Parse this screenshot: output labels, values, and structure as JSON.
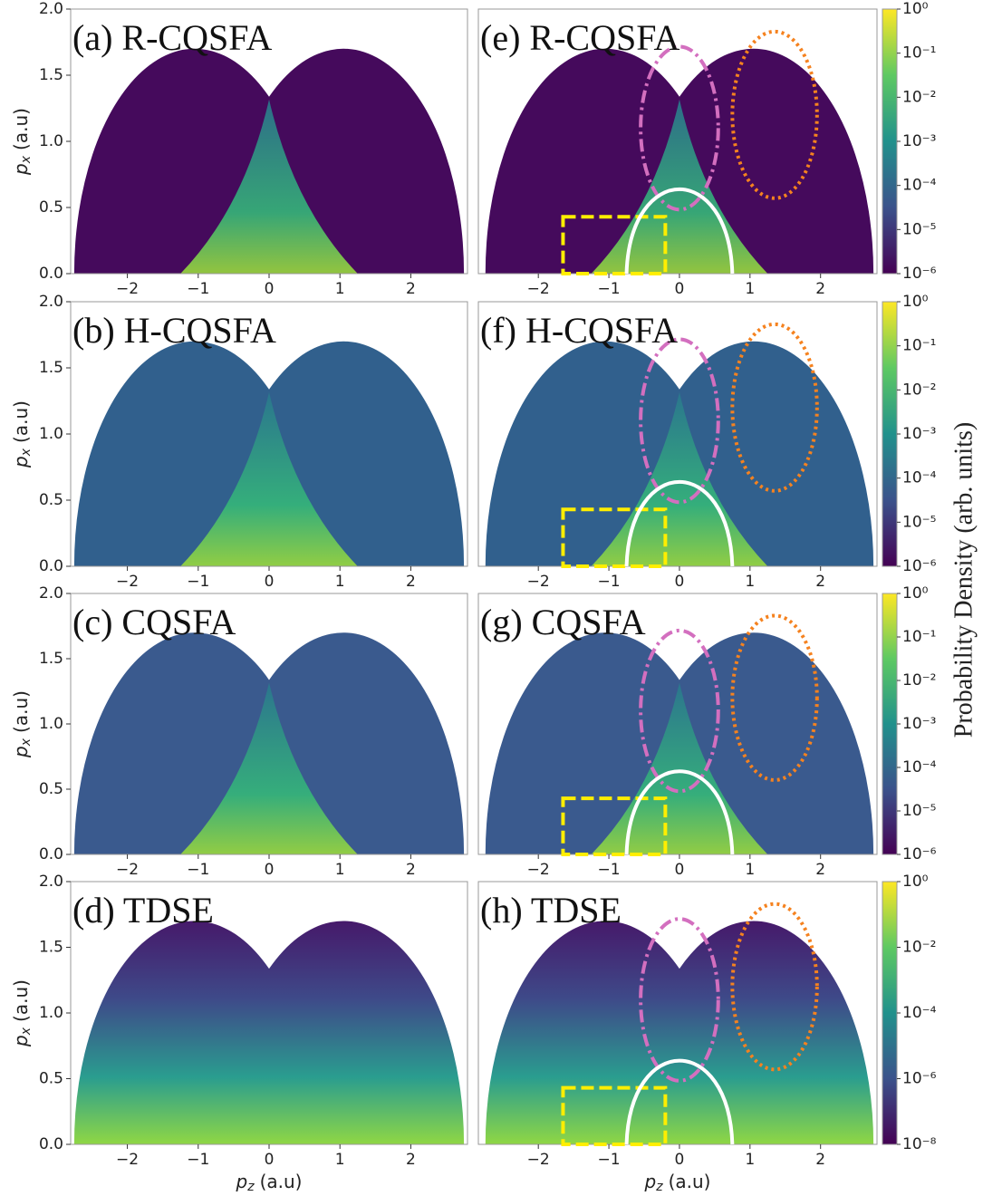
{
  "chart_data": [
    {
      "type": "heatmap",
      "title": "(a) R-CQSFA",
      "xlim": [
        -2.8,
        2.8
      ],
      "ylim": [
        0,
        2
      ],
      "xticks": [
        {
          "value": -2,
          "label": "−2"
        },
        {
          "value": -1,
          "label": "−1"
        },
        0,
        1,
        2
      ],
      "yticks": [
        {
          "value": 0,
          "label": "0.0"
        },
        {
          "value": 0.5,
          "label": "0.5"
        },
        {
          "value": 1,
          "label": "1.0"
        },
        {
          "value": 1.5,
          "label": "1.5"
        },
        {
          "value": 2,
          "label": "2.0"
        }
      ],
      "ylabel": {
        "symbol": "p",
        "sub": "x",
        "unit": "(a.u)"
      }
    },
    {
      "type": "heatmap",
      "title": "(b) H-CQSFA",
      "xlim": [
        -2.8,
        2.8
      ],
      "ylim": [
        0,
        2
      ],
      "xticks": [
        {
          "value": -2,
          "label": "−2"
        },
        {
          "value": -1,
          "label": "−1"
        },
        0,
        1,
        2
      ],
      "yticks": [
        {
          "value": 0,
          "label": "0.0"
        },
        {
          "value": 0.5,
          "label": "0.5"
        },
        {
          "value": 1,
          "label": "1.0"
        },
        {
          "value": 1.5,
          "label": "1.5"
        },
        {
          "value": 2,
          "label": "2.0"
        }
      ],
      "ylabel": {
        "symbol": "p",
        "sub": "x",
        "unit": "(a.u)"
      }
    },
    {
      "type": "heatmap",
      "title": "(c) CQSFA",
      "xlim": [
        -2.8,
        2.8
      ],
      "ylim": [
        0,
        2
      ],
      "xticks": [
        {
          "value": -2,
          "label": "−2"
        },
        {
          "value": -1,
          "label": "−1"
        },
        0,
        1,
        2
      ],
      "yticks": [
        {
          "value": 0,
          "label": "0.0"
        },
        {
          "value": 0.5,
          "label": "0.5"
        },
        {
          "value": 1,
          "label": "1.0"
        },
        {
          "value": 1.5,
          "label": "1.5"
        },
        {
          "value": 2,
          "label": "2.0"
        }
      ],
      "ylabel": {
        "symbol": "p",
        "sub": "x",
        "unit": "(a.u)"
      }
    },
    {
      "type": "heatmap",
      "title": "(d) TDSE",
      "xlim": [
        -2.8,
        2.8
      ],
      "ylim": [
        0,
        2
      ],
      "xticks": [
        {
          "value": -2,
          "label": "−2"
        },
        {
          "value": -1,
          "label": "−1"
        },
        0,
        1,
        2
      ],
      "yticks": [
        {
          "value": 0,
          "label": "0.0"
        },
        {
          "value": 0.5,
          "label": "0.5"
        },
        {
          "value": 1,
          "label": "1.0"
        },
        {
          "value": 1.5,
          "label": "1.5"
        },
        {
          "value": 2,
          "label": "2.0"
        }
      ],
      "ylabel": {
        "symbol": "p",
        "sub": "x",
        "unit": "(a.u)"
      },
      "xlabel": {
        "symbol": "p",
        "sub": "z",
        "unit": "(a.u)"
      }
    },
    {
      "type": "heatmap",
      "title": "(e) R-CQSFA",
      "xlim": [
        -2.85,
        2.8
      ],
      "ylim": [
        0,
        2
      ],
      "xticks": [
        {
          "value": -2,
          "label": "−2"
        },
        {
          "value": -1,
          "label": "−1"
        },
        0,
        1,
        2
      ],
      "colorbar": {
        "lim": [
          -6,
          0
        ],
        "ticks": [
          {
            "value": 0,
            "label": "10⁰"
          },
          {
            "value": -1,
            "label": "10⁻¹"
          },
          {
            "value": -2,
            "label": "10⁻²"
          },
          {
            "value": -3,
            "label": "10⁻³"
          },
          {
            "value": -4,
            "label": "10⁻⁴"
          },
          {
            "value": -5,
            "label": "10⁻⁵"
          },
          {
            "value": -6,
            "label": "10⁻⁶"
          }
        ]
      }
    },
    {
      "type": "heatmap",
      "title": "(f) H-CQSFA",
      "xlim": [
        -2.85,
        2.8
      ],
      "ylim": [
        0,
        2
      ],
      "xticks": [
        {
          "value": -2,
          "label": "−2"
        },
        {
          "value": -1,
          "label": "−1"
        },
        0,
        1,
        2
      ],
      "colorbar": {
        "lim": [
          -6,
          0
        ],
        "ticks": [
          {
            "value": 0,
            "label": "10⁰"
          },
          {
            "value": -1,
            "label": "10⁻¹"
          },
          {
            "value": -2,
            "label": "10⁻²"
          },
          {
            "value": -3,
            "label": "10⁻³"
          },
          {
            "value": -4,
            "label": "10⁻⁴"
          },
          {
            "value": -5,
            "label": "10⁻⁵"
          },
          {
            "value": -6,
            "label": "10⁻⁶"
          }
        ]
      }
    },
    {
      "type": "heatmap",
      "title": "(g) CQSFA",
      "xlim": [
        -2.85,
        2.8
      ],
      "ylim": [
        0,
        2
      ],
      "xticks": [
        {
          "value": -2,
          "label": "−2"
        },
        {
          "value": -1,
          "label": "−1"
        },
        0,
        1,
        2
      ],
      "colorbar": {
        "lim": [
          -6,
          0
        ],
        "ticks": [
          {
            "value": 0,
            "label": "10⁰"
          },
          {
            "value": -1,
            "label": "10⁻¹"
          },
          {
            "value": -2,
            "label": "10⁻²"
          },
          {
            "value": -3,
            "label": "10⁻³"
          },
          {
            "value": -4,
            "label": "10⁻⁴"
          },
          {
            "value": -5,
            "label": "10⁻⁵"
          },
          {
            "value": -6,
            "label": "10⁻⁶"
          }
        ]
      }
    },
    {
      "type": "heatmap",
      "title": "(h) TDSE",
      "xlim": [
        -2.85,
        2.8
      ],
      "ylim": [
        0,
        2
      ],
      "xticks": [
        {
          "value": -2,
          "label": "−2"
        },
        {
          "value": -1,
          "label": "−1"
        },
        0,
        1,
        2
      ],
      "xlabel": {
        "symbol": "p",
        "sub": "z",
        "unit": "(a.u)"
      },
      "colorbar": {
        "lim": [
          -8,
          0
        ],
        "ticks": [
          {
            "value": 0,
            "label": "10⁰"
          },
          {
            "value": -2,
            "label": "10⁻²"
          },
          {
            "value": -4,
            "label": "10⁻⁴"
          },
          {
            "value": -6,
            "label": "10⁻⁶"
          },
          {
            "value": -8,
            "label": "10⁻⁸"
          }
        ]
      }
    }
  ],
  "colorbar_label": "Probability Density (arb. units)"
}
